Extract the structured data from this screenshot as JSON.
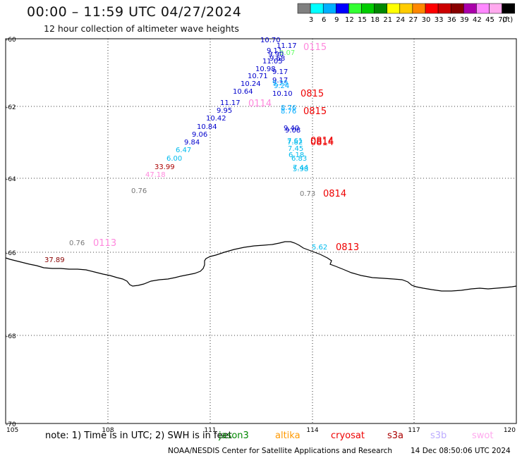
{
  "header": {
    "title": "00:00 – 11:59 UTC 04/27/2024",
    "subtitle": "12 hour collection of altimeter wave heights"
  },
  "color_scale": {
    "colors": [
      "#808080",
      "#00ffff",
      "#00b0ff",
      "#0000ff",
      "#33ff33",
      "#00cc00",
      "#008800",
      "#ffff00",
      "#ffcc00",
      "#ff8800",
      "#ff0000",
      "#cc0000",
      "#880000",
      "#aa00aa",
      "#ff88ff",
      "#ffaaee",
      "#000000"
    ],
    "labels": [
      "3",
      "6",
      "9",
      "12",
      "15",
      "18",
      "21",
      "24",
      "27",
      "30",
      "33",
      "36",
      "39",
      "42",
      "45",
      "70",
      "(ft)"
    ]
  },
  "map": {
    "lat_labels": [
      "-60",
      "-62",
      "-64",
      "-66",
      "-68",
      "-70"
    ],
    "lon_labels": [
      "105",
      "108",
      "111",
      "114",
      "117",
      "120"
    ],
    "wave_labels": [
      {
        "text": "10.70",
        "c": "#0000cc"
      },
      {
        "text": "11.17",
        "c": "#0000cc"
      },
      {
        "text": "9.11",
        "c": "#0000cc"
      },
      {
        "text": "9.07",
        "c": "#66ff66"
      },
      {
        "text": "9.90",
        "c": "#0000cc"
      },
      {
        "text": "9.68",
        "c": "#0000cc"
      },
      {
        "text": "11.05",
        "c": "#0000cc"
      },
      {
        "text": "10.98",
        "c": "#0000cc"
      },
      {
        "text": "9.17",
        "c": "#0000cc"
      },
      {
        "text": "10.71",
        "c": "#0000cc"
      },
      {
        "text": "9.17",
        "c": "#0000cc"
      },
      {
        "text": "10.24",
        "c": "#0000cc"
      },
      {
        "text": "9.29",
        "c": "#00aaff"
      },
      {
        "text": "9.24",
        "c": "#00aaff"
      },
      {
        "text": "10.64",
        "c": "#0000cc"
      },
      {
        "text": "10.10",
        "c": "#0000cc"
      },
      {
        "text": "11.17",
        "c": "#0000cc"
      },
      {
        "text": "9.95",
        "c": "#0000cc"
      },
      {
        "text": "8.76",
        "c": "#00aaff"
      },
      {
        "text": "8.76",
        "c": "#00aaff"
      },
      {
        "text": "10.42",
        "c": "#0000cc"
      },
      {
        "text": "10.84",
        "c": "#0000cc"
      },
      {
        "text": "9.40",
        "c": "#0000cc"
      },
      {
        "text": "9.08",
        "c": "#0000cc"
      },
      {
        "text": "9.06",
        "c": "#0000cc"
      },
      {
        "text": "9.84",
        "c": "#0000cc"
      },
      {
        "text": "7.61",
        "c": "#00bbee"
      },
      {
        "text": "7.82",
        "c": "#00bbee"
      },
      {
        "text": "7.45",
        "c": "#00bbee"
      },
      {
        "text": "6.47",
        "c": "#00bbee"
      },
      {
        "text": "6.18",
        "c": "#00bbee"
      },
      {
        "text": "6.00",
        "c": "#00bbee"
      },
      {
        "text": "6.83",
        "c": "#00bbee"
      },
      {
        "text": "33.99",
        "c": "#aa0000"
      },
      {
        "text": "7.44",
        "c": "#00bbee"
      },
      {
        "text": "5.98",
        "c": "#00bbee"
      },
      {
        "text": "47.18",
        "c": "#ff88dd"
      },
      {
        "text": "0.76",
        "c": "#777777"
      },
      {
        "text": "0.73",
        "c": "#777777"
      },
      {
        "text": "0.76",
        "c": "#777777"
      },
      {
        "text": "5.62",
        "c": "#00bbee"
      },
      {
        "text": "37.89",
        "c": "#880000"
      }
    ],
    "time_labels": [
      {
        "text": "0115",
        "c": "#ff88dd"
      },
      {
        "text": "0815",
        "c": "#ee0000"
      },
      {
        "text": "0114",
        "c": "#ff88dd"
      },
      {
        "text": "0815",
        "c": "#ee0000"
      },
      {
        "text": "0814",
        "c": "#ee0000"
      },
      {
        "text": "0814",
        "c": "#ee0000"
      },
      {
        "text": "0814",
        "c": "#ee0000"
      },
      {
        "text": "0113",
        "c": "#ff88dd"
      },
      {
        "text": "0813",
        "c": "#ee0000"
      }
    ]
  },
  "footer": {
    "note": "note:  1)  Time is in UTC; 2)  SWH is in feet",
    "satellites": [
      {
        "name": "jason3",
        "c": "#008800"
      },
      {
        "name": "altika",
        "c": "#ff9900"
      },
      {
        "name": "cryosat",
        "c": "#ee0000"
      },
      {
        "name": "s3a",
        "c": "#aa0000"
      },
      {
        "name": "s3b",
        "c": "#bbaaff"
      },
      {
        "name": "swot",
        "c": "#ffaaee"
      }
    ],
    "credit": "NOAA/NESDIS Center for Satellite Applications and Research",
    "generated": "14 Dec 08:50:06 UTC 2024"
  }
}
